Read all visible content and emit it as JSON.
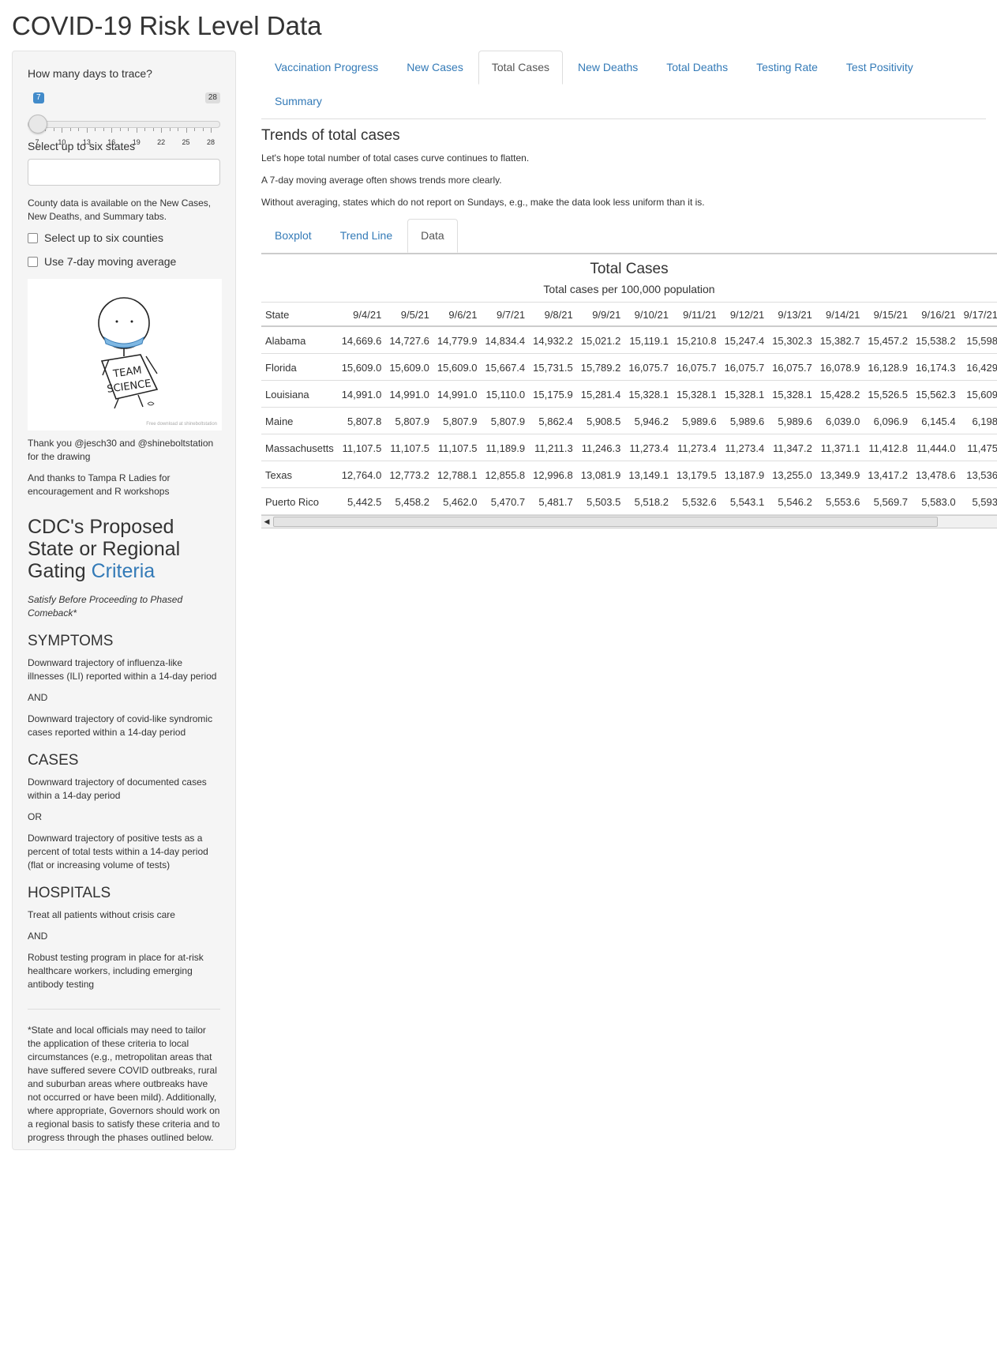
{
  "app_title": "COVID-19 Risk Level Data",
  "sidebar": {
    "days_label": "How many days to trace?",
    "slider": {
      "min": 7,
      "max": 28,
      "value": 7,
      "from_label": "7",
      "to_label": "28",
      "tick_labels": [
        "7",
        "10",
        "13",
        "16",
        "19",
        "22",
        "25",
        "28"
      ]
    },
    "states_label": "Select up to six states",
    "states_value": "",
    "county_note": "County data is available on the New Cases, New Deaths, and Summary tabs.",
    "counties_checkbox": "Select up to six counties",
    "moving_avg_checkbox": "Use 7-day moving average",
    "drawing_sign_text": "TEAM SCIENCE",
    "drawing_credit": "Free download at shineboltstation",
    "thanks1": "Thank you @jesch30 and @shineboltstation for the drawing",
    "thanks2": "And thanks to Tampa R Ladies for encouragement and R workshops",
    "cdc_title_part1": "CDC's Proposed State or Regional Gating ",
    "cdc_title_link": "Criteria",
    "cdc_subtitle": "Satisfy Before Proceeding to Phased Comeback*",
    "symptoms_head": "SYMPTOMS",
    "symptoms_1": "Downward trajectory of influenza-like illnesses (ILI) reported within a 14-day period",
    "symptoms_and": "AND",
    "symptoms_2": "Downward trajectory of covid-like syndromic cases reported within a 14-day period",
    "cases_head": "CASES",
    "cases_1": "Downward trajectory of documented cases within a 14-day period",
    "cases_or": "OR",
    "cases_2": "Downward trajectory of positive tests as a percent of total tests within a 14-day period (flat or increasing volume of tests)",
    "hospitals_head": "HOSPITALS",
    "hospitals_1": "Treat all patients without crisis care",
    "hospitals_and": "AND",
    "hospitals_2": "Robust testing program in place for at-risk healthcare workers, including emerging antibody testing",
    "footnote": "*State and local officials may need to tailor the application of these criteria to local circumstances (e.g., metropolitan areas that have suffered severe COVID outbreaks, rural and suburban areas where outbreaks have not occurred or have been mild). Additionally, where appropriate, Governors should work on a regional basis to satisfy these criteria and to progress through the phases outlined below."
  },
  "tabs": [
    "Vaccination Progress",
    "New Cases",
    "Total Cases",
    "New Deaths",
    "Total Deaths",
    "Testing Rate",
    "Test Positivity",
    "Summary"
  ],
  "active_tab": "Total Cases",
  "main": {
    "heading": "Trends of total cases",
    "p1": "Let's hope total number of total cases curve continues to flatten.",
    "p2": "A 7-day moving average often shows trends more clearly.",
    "p3": "Without averaging, states which do not report on Sundays, e.g., make the data look less uniform than it is."
  },
  "sub_tabs": [
    "Boxplot",
    "Trend Line",
    "Data"
  ],
  "active_sub_tab": "Data",
  "table": {
    "title": "Total Cases",
    "subtitle": "Total cases per 100,000 population",
    "columns": [
      "State",
      "9/4/21",
      "9/5/21",
      "9/6/21",
      "9/7/21",
      "9/8/21",
      "9/9/21",
      "9/10/21",
      "9/11/21",
      "9/12/21",
      "9/13/21",
      "9/14/21",
      "9/15/21",
      "9/16/21",
      "9/17/21"
    ],
    "rows": [
      [
        "Alabama",
        "14,669.6",
        "14,727.6",
        "14,779.9",
        "14,834.4",
        "14,932.2",
        "15,021.2",
        "15,119.1",
        "15,210.8",
        "15,247.4",
        "15,302.3",
        "15,382.7",
        "15,457.2",
        "15,538.2",
        "15,598"
      ],
      [
        "Florida",
        "15,609.0",
        "15,609.0",
        "15,609.0",
        "15,667.4",
        "15,731.5",
        "15,789.2",
        "16,075.7",
        "16,075.7",
        "16,075.7",
        "16,075.7",
        "16,078.9",
        "16,128.9",
        "16,174.3",
        "16,429"
      ],
      [
        "Louisiana",
        "14,991.0",
        "14,991.0",
        "14,991.0",
        "15,110.0",
        "15,175.9",
        "15,281.4",
        "15,328.1",
        "15,328.1",
        "15,328.1",
        "15,328.1",
        "15,428.2",
        "15,526.5",
        "15,562.3",
        "15,609"
      ],
      [
        "Maine",
        "5,807.8",
        "5,807.9",
        "5,807.9",
        "5,807.9",
        "5,862.4",
        "5,908.5",
        "5,946.2",
        "5,989.6",
        "5,989.6",
        "5,989.6",
        "6,039.0",
        "6,096.9",
        "6,145.4",
        "6,198"
      ],
      [
        "Massachusetts",
        "11,107.5",
        "11,107.5",
        "11,107.5",
        "11,189.9",
        "11,211.3",
        "11,246.3",
        "11,273.4",
        "11,273.4",
        "11,273.4",
        "11,347.2",
        "11,371.1",
        "11,412.8",
        "11,444.0",
        "11,475"
      ],
      [
        "Texas",
        "12,764.0",
        "12,773.2",
        "12,788.1",
        "12,855.8",
        "12,996.8",
        "13,081.9",
        "13,149.1",
        "13,179.5",
        "13,187.9",
        "13,255.0",
        "13,349.9",
        "13,417.2",
        "13,478.6",
        "13,536"
      ],
      [
        "Puerto Rico",
        "5,442.5",
        "5,458.2",
        "5,462.0",
        "5,470.7",
        "5,481.7",
        "5,503.5",
        "5,518.2",
        "5,532.6",
        "5,543.1",
        "5,546.2",
        "5,553.6",
        "5,569.7",
        "5,583.0",
        "5,593"
      ]
    ]
  },
  "colors": {
    "link": "#337ab7",
    "active_badge": "#428bca",
    "sidebar_bg": "#f5f5f5"
  }
}
